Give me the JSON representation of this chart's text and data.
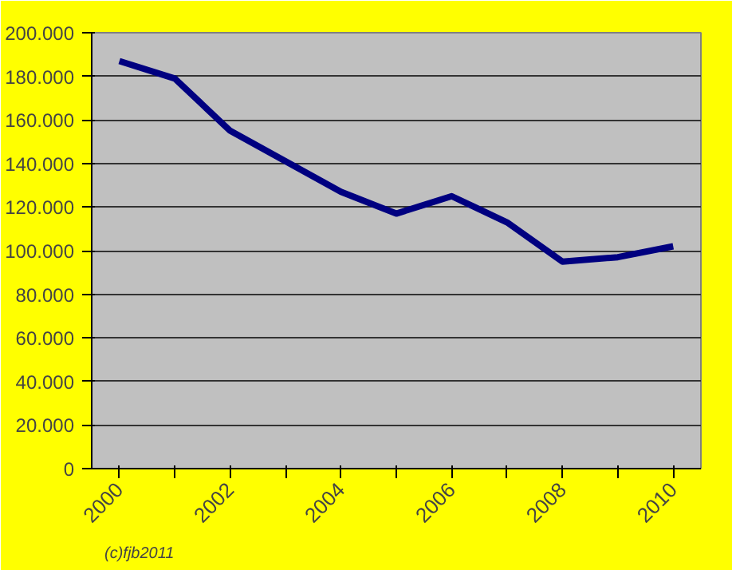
{
  "chart_data": {
    "type": "line",
    "categories": [
      "2000",
      null,
      "2002",
      null,
      "2004",
      null,
      "2006",
      null,
      "2008",
      null,
      "2010"
    ],
    "series": [
      {
        "color": "#000080",
        "values": [
          187000,
          179000,
          155000,
          141000,
          127000,
          117000,
          125000,
          113000,
          95000,
          97000,
          102000
        ]
      }
    ],
    "ylim": [
      0,
      200000
    ],
    "yticks": [
      {
        "value": 0,
        "label": "0"
      },
      {
        "value": 20000,
        "label": "20.000"
      },
      {
        "value": 40000,
        "label": "40.000"
      },
      {
        "value": 60000,
        "label": "60.000"
      },
      {
        "value": 80000,
        "label": "80.000"
      },
      {
        "value": 100000,
        "label": "100.000"
      },
      {
        "value": 120000,
        "label": "120.000"
      },
      {
        "value": 140000,
        "label": "140.000"
      },
      {
        "value": 160000,
        "label": "160.000"
      },
      {
        "value": 180000,
        "label": "180.000"
      },
      {
        "value": 200000,
        "label": "200.000"
      }
    ],
    "grid": "y",
    "marker": "none",
    "line_style": "solid",
    "annotations": [
      "(c)fjb2011"
    ]
  }
}
